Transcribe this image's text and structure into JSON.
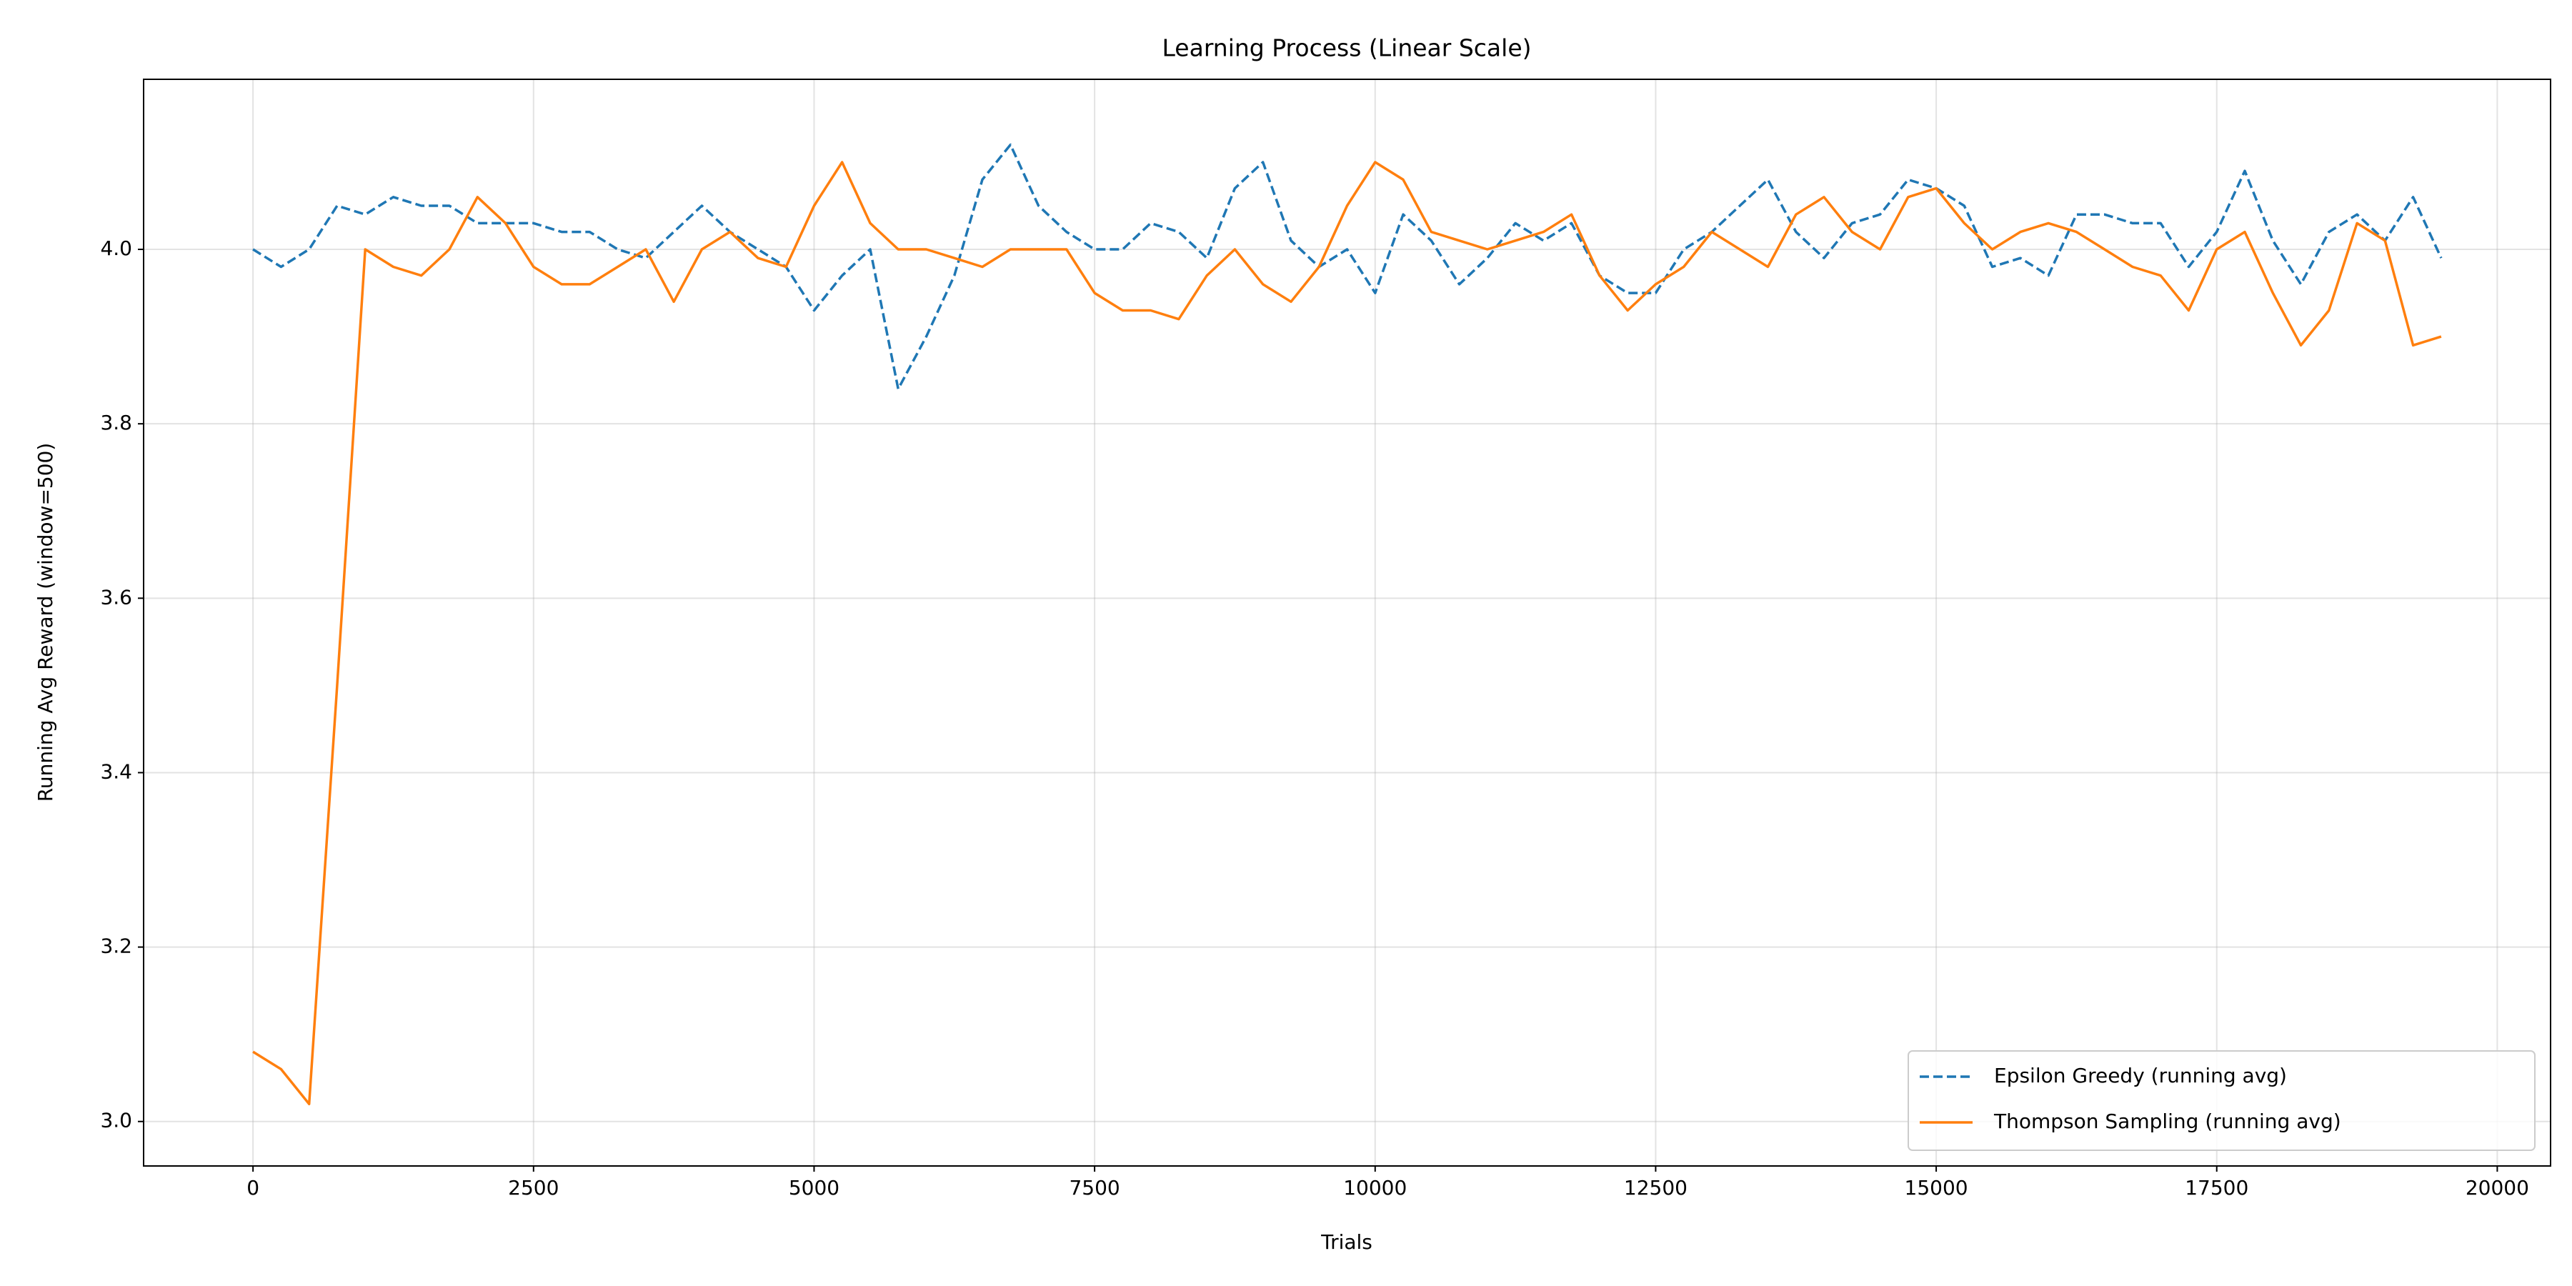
{
  "chart_data": {
    "type": "line",
    "title": "Learning Process (Linear Scale)",
    "x_label": "Trials",
    "y_label": "Running Avg Reward (window=500)",
    "x": [
      0,
      250,
      500,
      750,
      1000,
      1250,
      1500,
      1750,
      2000,
      2250,
      2500,
      2750,
      3000,
      3250,
      3500,
      3750,
      4000,
      4250,
      4500,
      4750,
      5000,
      5250,
      5500,
      5750,
      6000,
      6250,
      6500,
      6750,
      7000,
      7250,
      7500,
      7750,
      8000,
      8250,
      8500,
      8750,
      9000,
      9250,
      9500,
      9750,
      10000,
      10250,
      10500,
      10750,
      11000,
      11250,
      11500,
      11750,
      12000,
      12250,
      12500,
      12750,
      13000,
      13250,
      13500,
      13750,
      14000,
      14250,
      14500,
      14750,
      15000,
      15250,
      15500,
      15750,
      16000,
      16250,
      16500,
      16750,
      17000,
      17250,
      17500,
      17750,
      18000,
      18250,
      18500,
      18750,
      19000,
      19250,
      19500
    ],
    "series": [
      {
        "name": "Epsilon Greedy (running avg)",
        "color": "#1f77b4",
        "dashed": true,
        "values": [
          4.0,
          3.98,
          4.0,
          4.05,
          4.04,
          4.06,
          4.05,
          4.05,
          4.03,
          4.03,
          4.03,
          4.02,
          4.02,
          4.0,
          3.99,
          4.02,
          4.05,
          4.02,
          4.0,
          3.98,
          3.93,
          3.97,
          4.0,
          3.84,
          3.9,
          3.97,
          4.08,
          4.12,
          4.05,
          4.02,
          4.0,
          4.0,
          4.03,
          4.02,
          3.99,
          4.07,
          4.1,
          4.01,
          3.98,
          4.0,
          3.95,
          4.04,
          4.01,
          3.96,
          3.99,
          4.03,
          4.01,
          4.03,
          3.97,
          3.95,
          3.95,
          4.0,
          4.02,
          4.05,
          4.08,
          4.02,
          3.99,
          4.03,
          4.04,
          4.08,
          4.07,
          4.05,
          3.98,
          3.99,
          3.97,
          4.04,
          4.04,
          4.03,
          4.03,
          3.98,
          4.02,
          4.09,
          4.01,
          3.96,
          4.02,
          4.04,
          4.01,
          4.06,
          3.99
        ]
      },
      {
        "name": "Thompson Sampling (running avg)",
        "color": "#ff7f0e",
        "dashed": false,
        "values": [
          3.08,
          3.06,
          3.02,
          3.5,
          4.0,
          3.98,
          3.97,
          4.0,
          4.06,
          4.03,
          3.98,
          3.96,
          3.96,
          3.98,
          4.0,
          3.94,
          4.0,
          4.02,
          3.99,
          3.98,
          4.05,
          4.1,
          4.03,
          4.0,
          4.0,
          3.99,
          3.98,
          4.0,
          4.0,
          4.0,
          3.95,
          3.93,
          3.93,
          3.92,
          3.97,
          4.0,
          3.96,
          3.94,
          3.98,
          4.05,
          4.1,
          4.08,
          4.02,
          4.01,
          4.0,
          4.01,
          4.02,
          4.04,
          3.97,
          3.93,
          3.96,
          3.98,
          4.02,
          4.0,
          3.98,
          4.04,
          4.06,
          4.02,
          4.0,
          4.06,
          4.07,
          4.03,
          4.0,
          4.02,
          4.03,
          4.02,
          4.0,
          3.98,
          3.97,
          3.93,
          4.0,
          4.02,
          3.95,
          3.89,
          3.93,
          4.03,
          4.01,
          3.89,
          3.9
        ]
      }
    ],
    "xlim": [
      -975,
      20475
    ],
    "xticks": [
      0,
      2500,
      5000,
      7500,
      10000,
      12500,
      15000,
      17500,
      20000
    ],
    "ylim": [
      2.949,
      4.195
    ],
    "yticks": [
      {
        "value": 3,
        "label": "3.0"
      },
      3.2,
      3.4,
      3.6,
      3.8,
      {
        "value": 4,
        "label": "4.0"
      }
    ],
    "grid": true,
    "legend": "lower right"
  }
}
